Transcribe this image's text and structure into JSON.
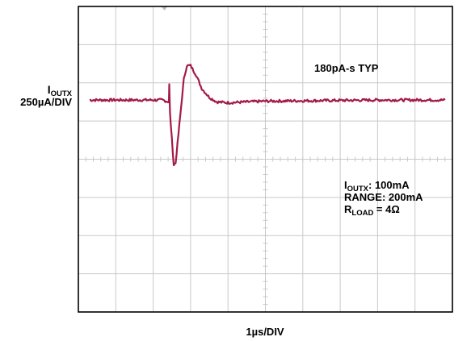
{
  "chart_data": {
    "type": "line",
    "title": "",
    "xlabel": "1µs/DIV",
    "ylabel": {
      "symbol": "I",
      "subscript": "OUTX",
      "scale": "250µA/DIV"
    },
    "grid": true,
    "x_divisions": 10,
    "y_divisions": 8,
    "xlim": [
      0,
      10
    ],
    "ylim": [
      -4,
      4
    ],
    "trace_color": "#a31a47",
    "series": [
      {
        "baseline_div": 1.55,
        "points": [
          [
            0.3,
            1.55
          ],
          [
            2.25,
            1.55
          ],
          [
            2.42,
            1.5
          ],
          [
            2.43,
            1.95
          ],
          [
            2.45,
            1.2
          ],
          [
            2.55,
            -0.15
          ],
          [
            2.6,
            -0.1
          ],
          [
            2.7,
            0.9
          ],
          [
            2.82,
            2.1
          ],
          [
            2.9,
            2.45
          ],
          [
            3.0,
            2.45
          ],
          [
            3.15,
            2.2
          ],
          [
            3.3,
            1.85
          ],
          [
            3.5,
            1.62
          ],
          [
            3.7,
            1.5
          ],
          [
            4.0,
            1.48
          ],
          [
            4.5,
            1.5
          ],
          [
            5.0,
            1.52
          ],
          [
            6.0,
            1.53
          ],
          [
            7.0,
            1.54
          ],
          [
            8.0,
            1.55
          ],
          [
            9.0,
            1.55
          ],
          [
            9.8,
            1.55
          ]
        ]
      }
    ],
    "annotations": [
      {
        "text": "180pA-s TYP"
      },
      {
        "lines": [
          {
            "symbol": "I",
            "subscript": "OUTX",
            "suffix": ": 100mA"
          },
          {
            "text": "RANGE: 200mA"
          },
          {
            "symbol": "R",
            "subscript": "LOAD",
            "suffix": " = 4Ω"
          }
        ]
      }
    ]
  }
}
